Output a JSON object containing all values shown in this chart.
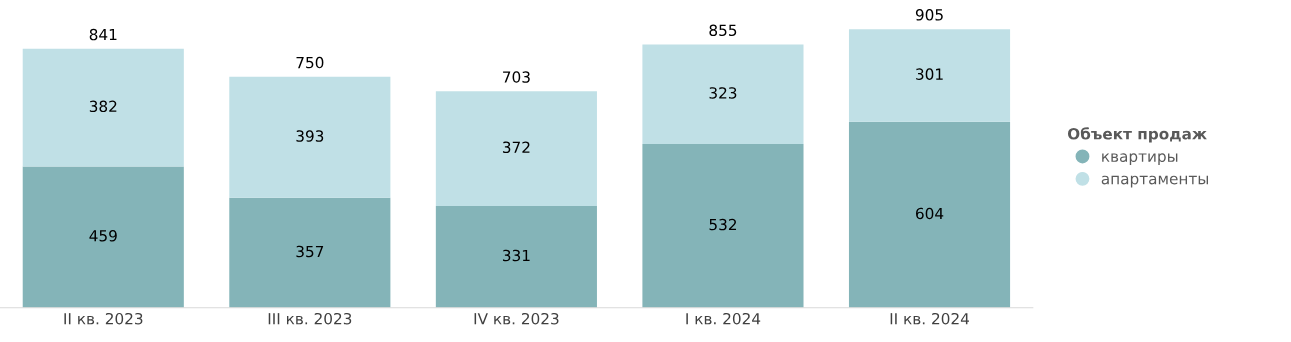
{
  "chart_data": {
    "type": "bar",
    "stacked": true,
    "categories": [
      "II кв. 2023",
      "III кв. 2023",
      "IV кв. 2023",
      "I кв. 2024",
      "II кв. 2024"
    ],
    "series": [
      {
        "name": "квартиры",
        "color": "#84b4b8",
        "values": [
          459,
          357,
          331,
          532,
          604
        ]
      },
      {
        "name": "апартаменты",
        "color": "#c0e0e6",
        "values": [
          382,
          393,
          372,
          323,
          301
        ]
      }
    ],
    "data_labels": true,
    "totals": [
      "841",
      "750",
      "703",
      "855",
      "905"
    ],
    "legend": "right",
    "legend_title": "Объект продаж",
    "grid": false,
    "tick_labels": "x"
  }
}
